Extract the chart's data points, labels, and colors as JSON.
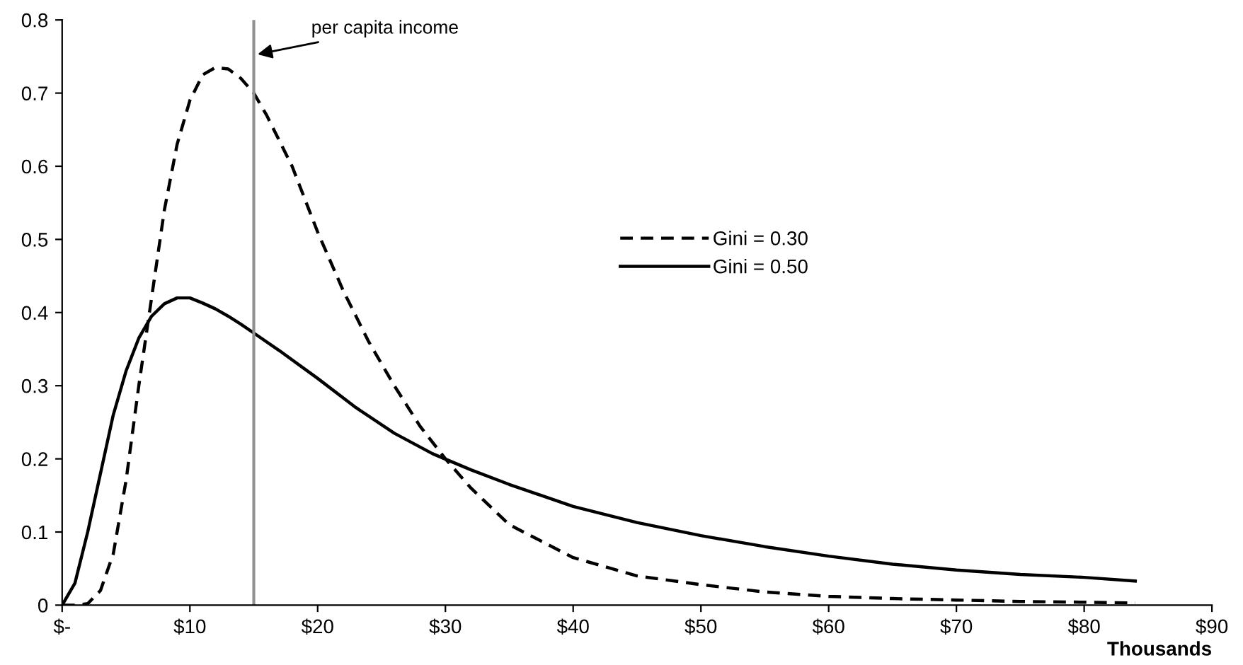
{
  "chart_data": {
    "type": "line",
    "xlabel": "Thousands",
    "xlim": [
      0,
      90
    ],
    "ylim": [
      0,
      0.8
    ],
    "xticks": [
      {
        "value": 0,
        "label": "$-"
      },
      {
        "value": 10,
        "label": "$10"
      },
      {
        "value": 20,
        "label": "$20"
      },
      {
        "value": 30,
        "label": "$30"
      },
      {
        "value": 40,
        "label": "$40"
      },
      {
        "value": 50,
        "label": "$50"
      },
      {
        "value": 60,
        "label": "$60"
      },
      {
        "value": 70,
        "label": "$70"
      },
      {
        "value": 80,
        "label": "$80"
      },
      {
        "value": 90,
        "label": "$90"
      }
    ],
    "yticks": [
      0,
      0.1,
      0.2,
      0.3,
      0.4,
      0.5,
      0.6,
      0.7,
      0.8
    ],
    "grid": false,
    "legend": "center",
    "marker": "none",
    "ref_lines": [
      {
        "axis": "x",
        "value": 15,
        "label": "per capita income",
        "color": "#909090",
        "line_style": "solid"
      }
    ],
    "series": [
      {
        "name": "Gini = 0.30",
        "color": "#000000",
        "line_style": "dashed",
        "x": [
          0,
          1,
          2,
          3,
          4,
          5,
          6,
          7,
          8,
          9,
          10,
          11,
          12,
          13,
          14,
          15,
          16,
          18,
          20,
          22,
          24,
          26,
          28,
          30,
          32,
          35,
          40,
          45,
          50,
          55,
          60,
          65,
          70,
          75,
          80,
          84
        ],
        "values": [
          0,
          0,
          0.002,
          0.02,
          0.07,
          0.17,
          0.3,
          0.42,
          0.54,
          0.63,
          0.69,
          0.725,
          0.735,
          0.733,
          0.72,
          0.7,
          0.67,
          0.6,
          0.51,
          0.43,
          0.36,
          0.3,
          0.245,
          0.2,
          0.16,
          0.11,
          0.065,
          0.04,
          0.028,
          0.018,
          0.012,
          0.009,
          0.007,
          0.005,
          0.004,
          0.003
        ]
      },
      {
        "name": "Gini = 0.50",
        "color": "#000000",
        "line_style": "solid",
        "x": [
          0,
          1,
          2,
          3,
          4,
          5,
          6,
          7,
          8,
          9,
          10,
          11,
          12,
          13,
          14,
          15,
          17,
          20,
          23,
          26,
          29,
          32,
          35,
          40,
          45,
          50,
          55,
          60,
          65,
          70,
          75,
          80,
          84
        ],
        "values": [
          0,
          0.03,
          0.1,
          0.18,
          0.26,
          0.32,
          0.365,
          0.395,
          0.412,
          0.42,
          0.42,
          0.413,
          0.405,
          0.395,
          0.384,
          0.372,
          0.348,
          0.31,
          0.27,
          0.235,
          0.207,
          0.185,
          0.165,
          0.135,
          0.113,
          0.095,
          0.08,
          0.067,
          0.056,
          0.048,
          0.042,
          0.038,
          0.033
        ]
      }
    ]
  }
}
